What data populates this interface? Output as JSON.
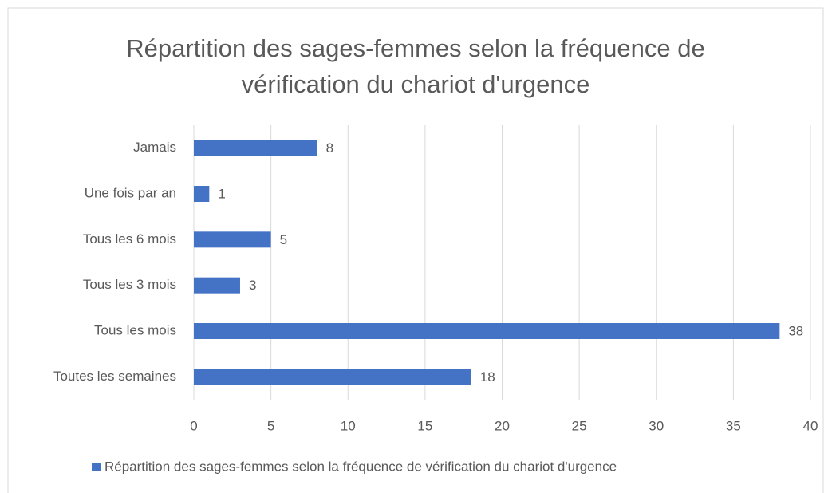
{
  "chart_data": {
    "type": "bar",
    "orientation": "horizontal",
    "title": "Répartition des sages-femmes selon la fréquence de vérification du chariot d'urgence",
    "categories": [
      "Jamais",
      "Une fois par an",
      "Tous les 6 mois",
      "Tous les 3 mois",
      "Tous les mois",
      "Toutes les semaines"
    ],
    "series": [
      {
        "name": "Répartition des sages-femmes selon la fréquence de vérification du chariot d'urgence",
        "color": "#4472c4",
        "values": [
          8,
          1,
          5,
          3,
          38,
          18
        ]
      }
    ],
    "xlim": [
      0,
      40
    ],
    "xticks": [
      0,
      5,
      10,
      15,
      20,
      25,
      30,
      35,
      40
    ],
    "grid": true,
    "legend": "bottom"
  }
}
